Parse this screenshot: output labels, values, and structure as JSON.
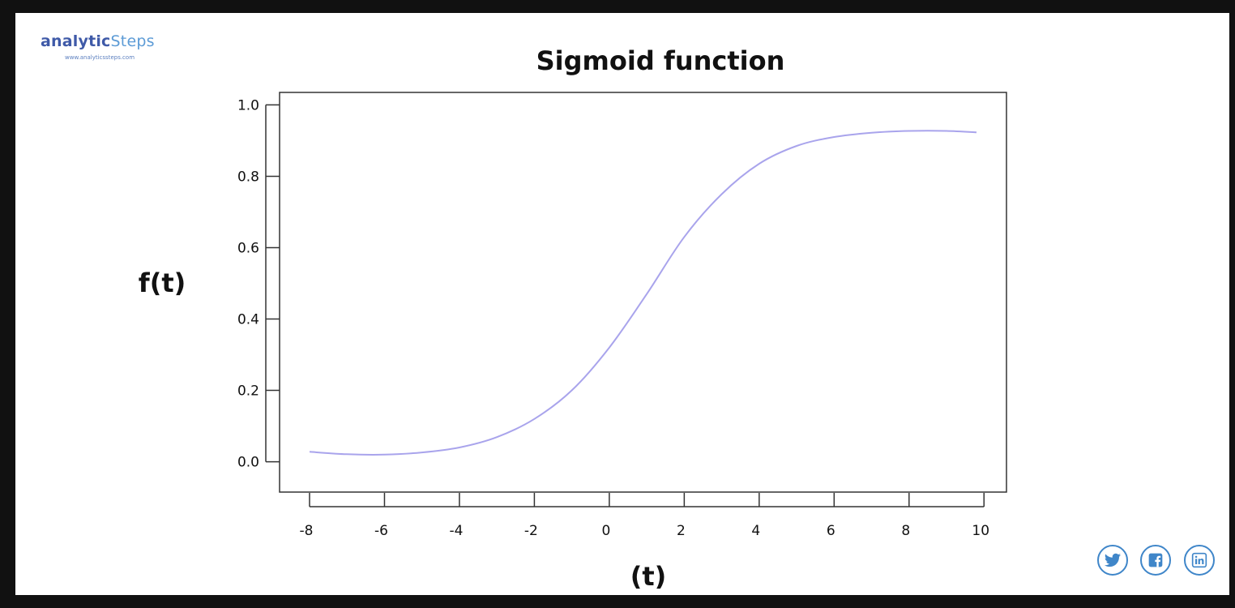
{
  "brand": {
    "name_part1": "analytic",
    "name_part2": "Steps",
    "url": "www.analyticssteps.com"
  },
  "social": [
    {
      "icon": "twitter-icon"
    },
    {
      "icon": "facebook-icon"
    },
    {
      "icon": "linkedin-icon"
    }
  ],
  "colors": {
    "curve": "#a9a4ec",
    "brand_dark": "#3f5aa8",
    "brand_light": "#5c9bd6",
    "social": "#3f86c9"
  },
  "chart_data": {
    "type": "line",
    "title": "Sigmoid function",
    "xlabel": "(t)",
    "ylabel": "f(t)",
    "xlim": [
      -8.8,
      10.6
    ],
    "ylim": [
      -0.085,
      1.035
    ],
    "x_ticks": [
      -8,
      -6,
      -4,
      -2,
      0,
      2,
      4,
      6,
      8,
      10
    ],
    "y_ticks": [
      0.0,
      0.2,
      0.4,
      0.6,
      0.8,
      1.0
    ],
    "y_tick_labels": [
      "0.0",
      "0.2",
      "0.4",
      "0.6",
      "0.8",
      "1.0"
    ],
    "grid": false,
    "series": [
      {
        "x": [
          -8,
          -7,
          -6,
          -5,
          -4,
          -3,
          -2,
          -1,
          0,
          1,
          2,
          3,
          4,
          5,
          6,
          7,
          8,
          9,
          9.8
        ],
        "y": [
          0.028,
          0.021,
          0.02,
          0.026,
          0.04,
          0.069,
          0.12,
          0.2,
          0.32,
          0.47,
          0.63,
          0.75,
          0.835,
          0.885,
          0.91,
          0.922,
          0.927,
          0.927,
          0.923
        ]
      }
    ]
  }
}
